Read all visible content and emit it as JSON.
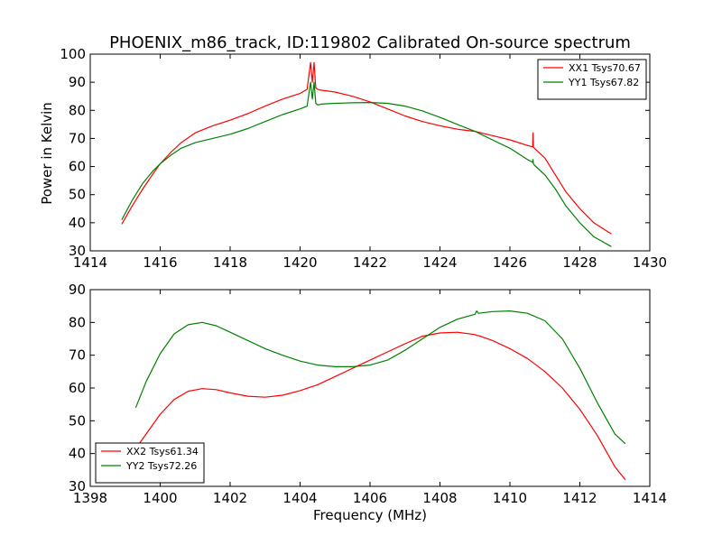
{
  "chart_data": [
    {
      "type": "line",
      "title": "PHOENIX_m86_track, ID:119802 Calibrated On-source spectrum",
      "xlabel": "",
      "ylabel": "Power in Kelvin",
      "xlim": [
        1414,
        1430
      ],
      "ylim": [
        30,
        100
      ],
      "xticks": [
        1414,
        1416,
        1418,
        1420,
        1422,
        1424,
        1426,
        1428,
        1430
      ],
      "yticks": [
        30,
        40,
        50,
        60,
        70,
        80,
        90,
        100
      ],
      "grid": false,
      "legend": "top-right",
      "series": [
        {
          "name": "XX1 Tsys70.67",
          "color": "#ff0000",
          "x": [
            1414.9,
            1415.2,
            1415.5,
            1415.8,
            1416.0,
            1416.3,
            1416.6,
            1417.0,
            1417.5,
            1418.0,
            1418.5,
            1419.0,
            1419.5,
            1420.0,
            1420.2,
            1420.3,
            1420.35,
            1420.4,
            1420.45,
            1420.5,
            1420.55,
            1420.6,
            1421.0,
            1421.5,
            1422.0,
            1422.5,
            1423.0,
            1423.5,
            1424.0,
            1424.5,
            1425.0,
            1425.5,
            1426.0,
            1426.5,
            1426.65,
            1426.66,
            1426.67,
            1426.7,
            1427.0,
            1427.3,
            1427.6,
            1428.0,
            1428.4,
            1428.9
          ],
          "values": [
            39.5,
            46,
            52,
            57.5,
            61,
            65,
            68.5,
            72,
            74.5,
            76.5,
            78.8,
            81.5,
            84,
            86,
            87.5,
            97,
            90,
            97,
            88,
            87.5,
            87.3,
            87.2,
            86.5,
            85,
            83,
            80.5,
            78,
            76,
            74.5,
            73.3,
            72.5,
            71,
            69.5,
            67.5,
            67,
            72,
            67,
            66.5,
            63,
            57,
            51,
            45,
            40,
            36
          ]
        },
        {
          "name": "YY1 Tsys67.82",
          "color": "#008000",
          "x": [
            1414.9,
            1415.2,
            1415.5,
            1415.8,
            1416.0,
            1416.3,
            1416.6,
            1417.0,
            1417.5,
            1418.0,
            1418.5,
            1419.0,
            1419.5,
            1420.0,
            1420.2,
            1420.3,
            1420.35,
            1420.4,
            1420.45,
            1420.5,
            1420.55,
            1420.6,
            1421.0,
            1421.5,
            1422.0,
            1422.5,
            1423.0,
            1423.5,
            1424.0,
            1424.5,
            1425.0,
            1425.5,
            1426.0,
            1426.5,
            1426.65,
            1426.66,
            1426.67,
            1426.7,
            1427.0,
            1427.3,
            1427.6,
            1428.0,
            1428.4,
            1428.9
          ],
          "values": [
            41,
            48,
            54,
            58.5,
            61,
            64,
            66.5,
            68.5,
            70,
            71.5,
            73.5,
            76,
            78.5,
            80.5,
            81.5,
            90,
            84,
            90,
            82.5,
            82,
            82,
            82.2,
            82.5,
            82.7,
            82.8,
            82.5,
            81.5,
            79.8,
            77.5,
            75,
            72.5,
            69.5,
            66.5,
            62.5,
            61.5,
            62.5,
            61,
            60.5,
            57,
            52,
            46,
            40,
            35,
            31.5
          ]
        }
      ]
    },
    {
      "type": "line",
      "title": "",
      "xlabel": "Frequency (MHz)",
      "ylabel": "",
      "xlim": [
        1398,
        1414
      ],
      "ylim": [
        30,
        90
      ],
      "xticks": [
        1398,
        1400,
        1402,
        1404,
        1406,
        1408,
        1410,
        1412,
        1414
      ],
      "yticks": [
        30,
        40,
        50,
        60,
        70,
        80,
        90
      ],
      "grid": false,
      "legend": "bottom-left",
      "series": [
        {
          "name": "XX2 Tsys61.34",
          "color": "#ff0000",
          "x": [
            1399.3,
            1399.6,
            1400.0,
            1400.4,
            1400.8,
            1401.2,
            1401.6,
            1402.0,
            1402.5,
            1403.0,
            1403.5,
            1404.0,
            1404.5,
            1405.0,
            1405.5,
            1406.0,
            1406.5,
            1407.0,
            1407.5,
            1408.0,
            1408.5,
            1409.0,
            1409.05,
            1409.1,
            1409.5,
            1410.0,
            1410.5,
            1411.0,
            1411.5,
            1412.0,
            1412.5,
            1413.0,
            1413.3
          ],
          "values": [
            41.5,
            46,
            52,
            56.5,
            59,
            59.8,
            59.5,
            58.5,
            57.5,
            57.2,
            57.8,
            59.2,
            61,
            63.5,
            66,
            68.5,
            71,
            73.5,
            75.8,
            76.8,
            77,
            76.3,
            76,
            76,
            74.5,
            72,
            69,
            65,
            60,
            53.5,
            45.5,
            36,
            32
          ]
        },
        {
          "name": "YY2 Tsys72.26",
          "color": "#008000",
          "x": [
            1399.3,
            1399.6,
            1400.0,
            1400.4,
            1400.8,
            1401.2,
            1401.6,
            1402.0,
            1402.5,
            1403.0,
            1403.5,
            1404.0,
            1404.5,
            1405.0,
            1405.5,
            1406.0,
            1406.5,
            1407.0,
            1407.5,
            1408.0,
            1408.5,
            1409.0,
            1409.05,
            1409.1,
            1409.5,
            1410.0,
            1410.5,
            1411.0,
            1411.5,
            1412.0,
            1412.5,
            1413.0,
            1413.3
          ],
          "values": [
            54,
            62,
            70.5,
            76.5,
            79.3,
            80,
            79,
            77,
            74.5,
            72,
            70,
            68.2,
            67,
            66.5,
            66.5,
            67,
            68.5,
            71.5,
            75,
            78.5,
            81,
            82.5,
            83.5,
            82.8,
            83.3,
            83.5,
            82.8,
            80.5,
            75,
            66,
            55.5,
            46,
            43
          ]
        }
      ]
    }
  ]
}
